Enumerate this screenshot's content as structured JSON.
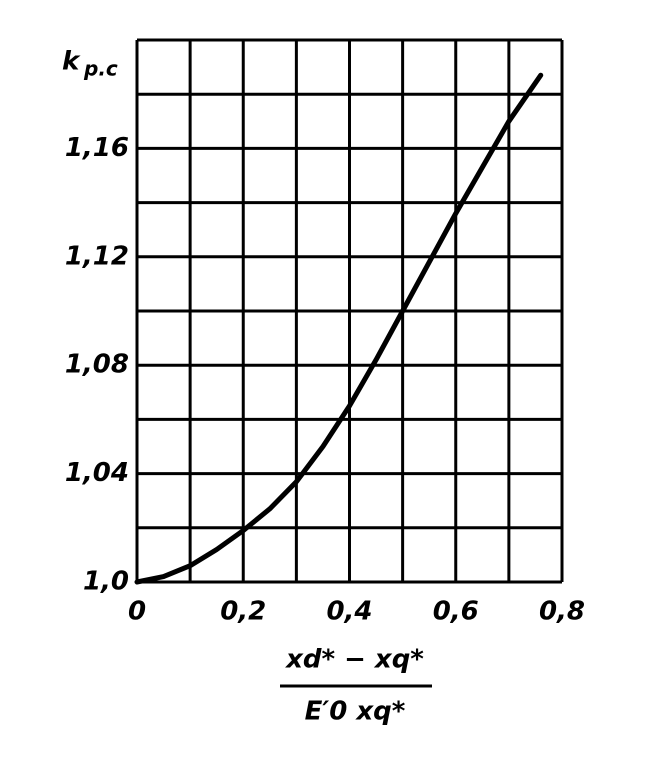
{
  "chart_data": {
    "type": "line",
    "ylabel": "k",
    "ylabel_sub": "p.c",
    "xlabel_numerator": "xd* − xq*",
    "xlabel_denominator": "E′0 xq*",
    "x": [
      0,
      0.05,
      0.1,
      0.15,
      0.2,
      0.25,
      0.3,
      0.35,
      0.4,
      0.45,
      0.5,
      0.55,
      0.6,
      0.65,
      0.7,
      0.76
    ],
    "series": [
      {
        "color": "#000000",
        "values": [
          1.0,
          1.002,
          1.006,
          1.012,
          1.019,
          1.027,
          1.037,
          1.05,
          1.065,
          1.082,
          1.1,
          1.118,
          1.136,
          1.153,
          1.17,
          1.187
        ]
      }
    ],
    "xlim": [
      0,
      0.8
    ],
    "ylim": [
      1.0,
      1.2
    ],
    "xticks": [
      0,
      {
        "value": 0.2,
        "label": "0,2"
      },
      {
        "value": 0.4,
        "label": "0,4"
      },
      {
        "value": 0.6,
        "label": "0,6"
      },
      {
        "value": 0.8,
        "label": "0,8"
      }
    ],
    "yticks": [
      {
        "value": 1.0,
        "label": "1,0"
      },
      {
        "value": 1.04,
        "label": "1,04"
      },
      {
        "value": 1.08,
        "label": "1,08"
      },
      {
        "value": 1.12,
        "label": "1,12"
      },
      {
        "value": 1.16,
        "label": "1,16"
      }
    ],
    "xgrid": [
      0.1,
      0.3,
      0.5,
      0.7
    ],
    "ygrid": [
      1.02,
      1.06,
      1.1,
      1.14,
      1.18,
      1.2
    ],
    "grid": true
  }
}
